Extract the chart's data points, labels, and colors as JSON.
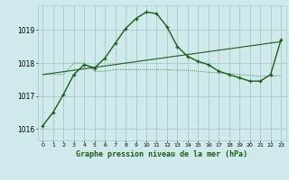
{
  "bg_color": "#d0eaec",
  "grid_color": "#aecdd1",
  "line_color": "#1a5c1a",
  "title": "Graphe pression niveau de la mer (hPa)",
  "xlim": [
    -0.5,
    23.5
  ],
  "ylim": [
    1015.65,
    1019.75
  ],
  "yticks": [
    1016,
    1017,
    1018,
    1019
  ],
  "xticks": [
    0,
    1,
    2,
    3,
    4,
    5,
    6,
    7,
    8,
    9,
    10,
    11,
    12,
    13,
    14,
    15,
    16,
    17,
    18,
    19,
    20,
    21,
    22,
    23
  ],
  "line1_x": [
    0,
    1,
    2,
    3,
    4,
    5,
    6,
    7,
    8,
    9,
    10,
    11,
    12,
    13,
    14,
    15,
    16,
    17,
    18,
    19,
    20,
    21,
    22,
    23
  ],
  "line1_y": [
    1016.1,
    1016.5,
    1017.05,
    1017.65,
    1017.95,
    1017.85,
    1018.15,
    1018.6,
    1019.05,
    1019.35,
    1019.55,
    1019.5,
    1019.1,
    1018.5,
    1018.2,
    1018.05,
    1017.95,
    1017.75,
    1017.65,
    1017.55,
    1017.45,
    1017.45,
    1017.65,
    1018.7
  ],
  "line2_x": [
    0,
    23
  ],
  "line2_y": [
    1017.65,
    1018.65
  ],
  "line3_x": [
    0,
    1,
    2,
    3,
    4,
    5,
    6,
    7,
    8,
    9,
    10,
    11,
    12,
    13,
    14,
    15,
    16,
    17,
    18,
    19,
    20,
    21,
    22,
    23
  ],
  "line3_y": [
    1017.65,
    1017.65,
    1017.65,
    1018.0,
    1018.0,
    1017.75,
    1017.75,
    1017.8,
    1017.8,
    1017.8,
    1017.8,
    1017.8,
    1017.8,
    1017.78,
    1017.78,
    1017.75,
    1017.72,
    1017.7,
    1017.68,
    1017.65,
    1017.62,
    1017.6,
    1017.6,
    1017.62
  ]
}
